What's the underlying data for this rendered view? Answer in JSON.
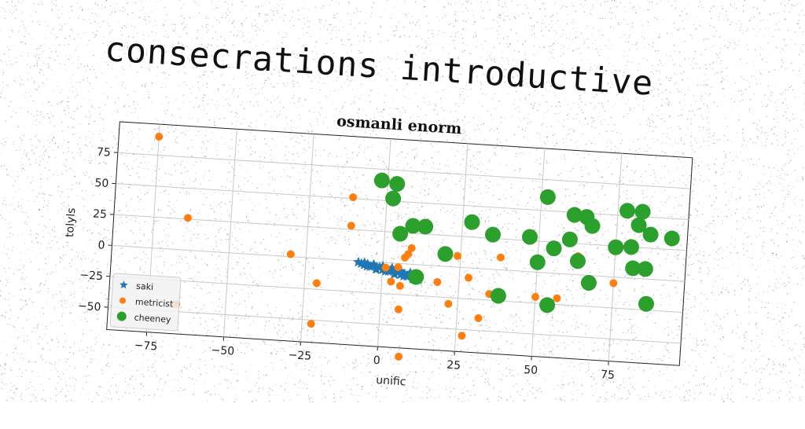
{
  "header": {
    "title": "consecrations introductive"
  },
  "chart_data": {
    "type": "scatter",
    "title": "osmanli enorm",
    "xlabel": "unific",
    "ylabel": "tolyls",
    "xlim": [
      -88,
      98
    ],
    "ylim": [
      -68,
      100
    ],
    "xticks": [
      -75,
      -50,
      -25,
      0,
      25,
      50,
      75
    ],
    "yticks": [
      -50,
      -25,
      0,
      25,
      50,
      75
    ],
    "grid": true,
    "legend_position": "lower-left",
    "series": [
      {
        "name": "saki",
        "marker": "star",
        "color": "#1f77b4",
        "points": [
          [
            -8,
            -1
          ],
          [
            -7,
            -2
          ],
          [
            -6,
            -3
          ],
          [
            -5,
            -2
          ],
          [
            -4,
            -4
          ],
          [
            -3,
            -3
          ],
          [
            -2,
            -5
          ],
          [
            -1,
            -4
          ],
          [
            0,
            -6
          ],
          [
            1,
            -5
          ],
          [
            2,
            -7
          ],
          [
            3,
            -6
          ],
          [
            4,
            -8
          ],
          [
            5,
            -7
          ],
          [
            6,
            -9
          ],
          [
            7,
            -8
          ],
          [
            8,
            -10
          ],
          [
            9,
            -9
          ],
          [
            10,
            -11
          ],
          [
            11,
            -10
          ],
          [
            12,
            -12
          ],
          [
            -6,
            -1
          ],
          [
            -3,
            -2
          ],
          [
            0,
            -3
          ],
          [
            3,
            -4
          ],
          [
            6,
            -6
          ],
          [
            9,
            -7
          ],
          [
            12,
            -9
          ],
          [
            -5,
            -4
          ],
          [
            -2,
            -6
          ],
          [
            1,
            -7
          ],
          [
            4,
            -9
          ],
          [
            7,
            -10
          ],
          [
            10,
            -12
          ]
        ]
      },
      {
        "name": "metricist",
        "marker": "circle",
        "color": "#ff7f0e",
        "points": [
          [
            -75,
            90
          ],
          [
            -64,
            26
          ],
          [
            -11,
            51
          ],
          [
            -11,
            28
          ],
          [
            -30,
            2
          ],
          [
            -21,
            -20
          ],
          [
            -22,
            -53
          ],
          [
            -66,
            -44
          ],
          [
            9,
            13
          ],
          [
            8,
            8
          ],
          [
            7,
            5
          ],
          [
            5,
            -3
          ],
          [
            1,
            -4
          ],
          [
            3,
            -15
          ],
          [
            6,
            -18
          ],
          [
            18,
            -13
          ],
          [
            22,
            -30
          ],
          [
            27,
            -55
          ],
          [
            24,
            9
          ],
          [
            28,
            -8
          ],
          [
            32,
            -40
          ],
          [
            6,
            -37
          ],
          [
            7,
            -75
          ],
          [
            38,
            10
          ],
          [
            35,
            -20
          ],
          [
            50,
            -20
          ],
          [
            57,
            -20
          ],
          [
            63,
            15
          ],
          [
            75,
            -5
          ]
        ]
      },
      {
        "name": "cheeney",
        "marker": "big-circle",
        "color": "#2ca02c",
        "points": [
          [
            -2,
            66
          ],
          [
            3,
            64
          ],
          [
            2,
            52
          ],
          [
            5,
            24
          ],
          [
            9,
            31
          ],
          [
            13,
            31
          ],
          [
            20,
            10
          ],
          [
            28,
            37
          ],
          [
            35,
            28
          ],
          [
            47,
            28
          ],
          [
            50,
            8
          ],
          [
            55,
            20
          ],
          [
            60,
            28
          ],
          [
            52,
            61
          ],
          [
            61,
            48
          ],
          [
            65,
            47
          ],
          [
            67,
            40
          ],
          [
            63,
            11
          ],
          [
            67,
            -6
          ],
          [
            75,
            24
          ],
          [
            80,
            25
          ],
          [
            78,
            54
          ],
          [
            83,
            54
          ],
          [
            82,
            43
          ],
          [
            86,
            36
          ],
          [
            81,
            8
          ],
          [
            85,
            8
          ],
          [
            93,
            34
          ],
          [
            86,
            -20
          ],
          [
            54,
            -26
          ],
          [
            38,
            -21
          ],
          [
            11,
            -10
          ]
        ]
      }
    ]
  }
}
